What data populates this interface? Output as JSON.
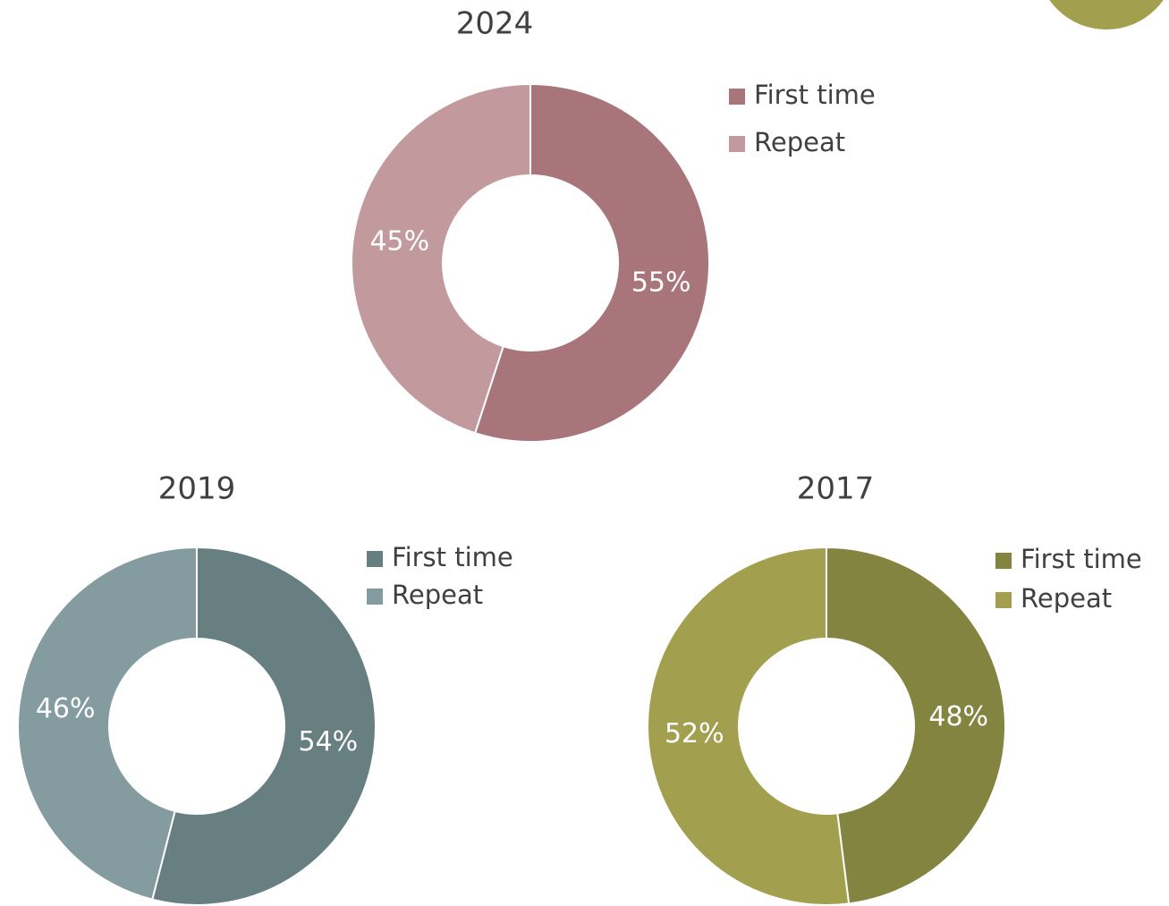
{
  "chart_data": [
    {
      "type": "donut",
      "title": "2024",
      "categories": [
        "First time",
        "Repeat"
      ],
      "values": [
        55,
        45
      ],
      "value_labels": [
        "55%",
        "45%"
      ],
      "colors": [
        "#a8757a",
        "#c29a9d"
      ]
    },
    {
      "type": "donut",
      "title": "2019",
      "categories": [
        "First time",
        "Repeat"
      ],
      "values": [
        54,
        46
      ],
      "value_labels": [
        "54%",
        "46%"
      ],
      "colors": [
        "#687f82",
        "#849ca0"
      ]
    },
    {
      "type": "donut",
      "title": "2017",
      "categories": [
        "First time",
        "Repeat"
      ],
      "values": [
        48,
        52
      ],
      "value_labels": [
        "48%",
        "52%"
      ],
      "colors": [
        "#848441",
        "#a2a04f"
      ]
    }
  ]
}
